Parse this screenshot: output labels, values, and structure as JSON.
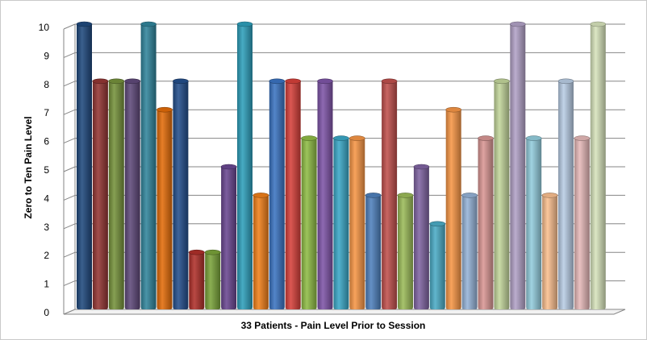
{
  "chart_data": {
    "type": "bar",
    "title": "",
    "xlabel": "33 Patients - Pain Level Prior to Session",
    "ylabel": "Zero to Ten Pain Level",
    "ylim": [
      0,
      10
    ],
    "yticks": [
      "0",
      "1",
      "2",
      "3",
      "4",
      "5",
      "6",
      "7",
      "8",
      "9",
      "10"
    ],
    "grid": true,
    "legend": "none",
    "values": [
      10,
      8,
      8,
      8,
      10,
      7,
      8,
      2,
      2,
      5,
      10,
      4,
      8,
      8,
      6,
      8,
      6,
      6,
      4,
      8,
      4,
      5,
      3,
      7,
      4,
      6,
      8,
      10,
      6,
      4,
      8,
      6,
      10
    ],
    "colors": [
      "#1f497d",
      "#943634",
      "#76923c",
      "#5f497a",
      "#31859c",
      "#e36c09",
      "#244f8c",
      "#b0302a",
      "#7aa33a",
      "#6a4791",
      "#2e9fbb",
      "#f0801a",
      "#3b74c2",
      "#d6403a",
      "#8fbc45",
      "#7f55a8",
      "#3aa8c7",
      "#f79646",
      "#4f81bd",
      "#c0504d",
      "#9bbb59",
      "#8064a2",
      "#4bacc6",
      "#f79646",
      "#95b3d7",
      "#d99694",
      "#c3d69b",
      "#b2a2c7",
      "#93cddd",
      "#fabf8f",
      "#b9cde5",
      "#e6b9b8",
      "#d7e4bc"
    ]
  }
}
